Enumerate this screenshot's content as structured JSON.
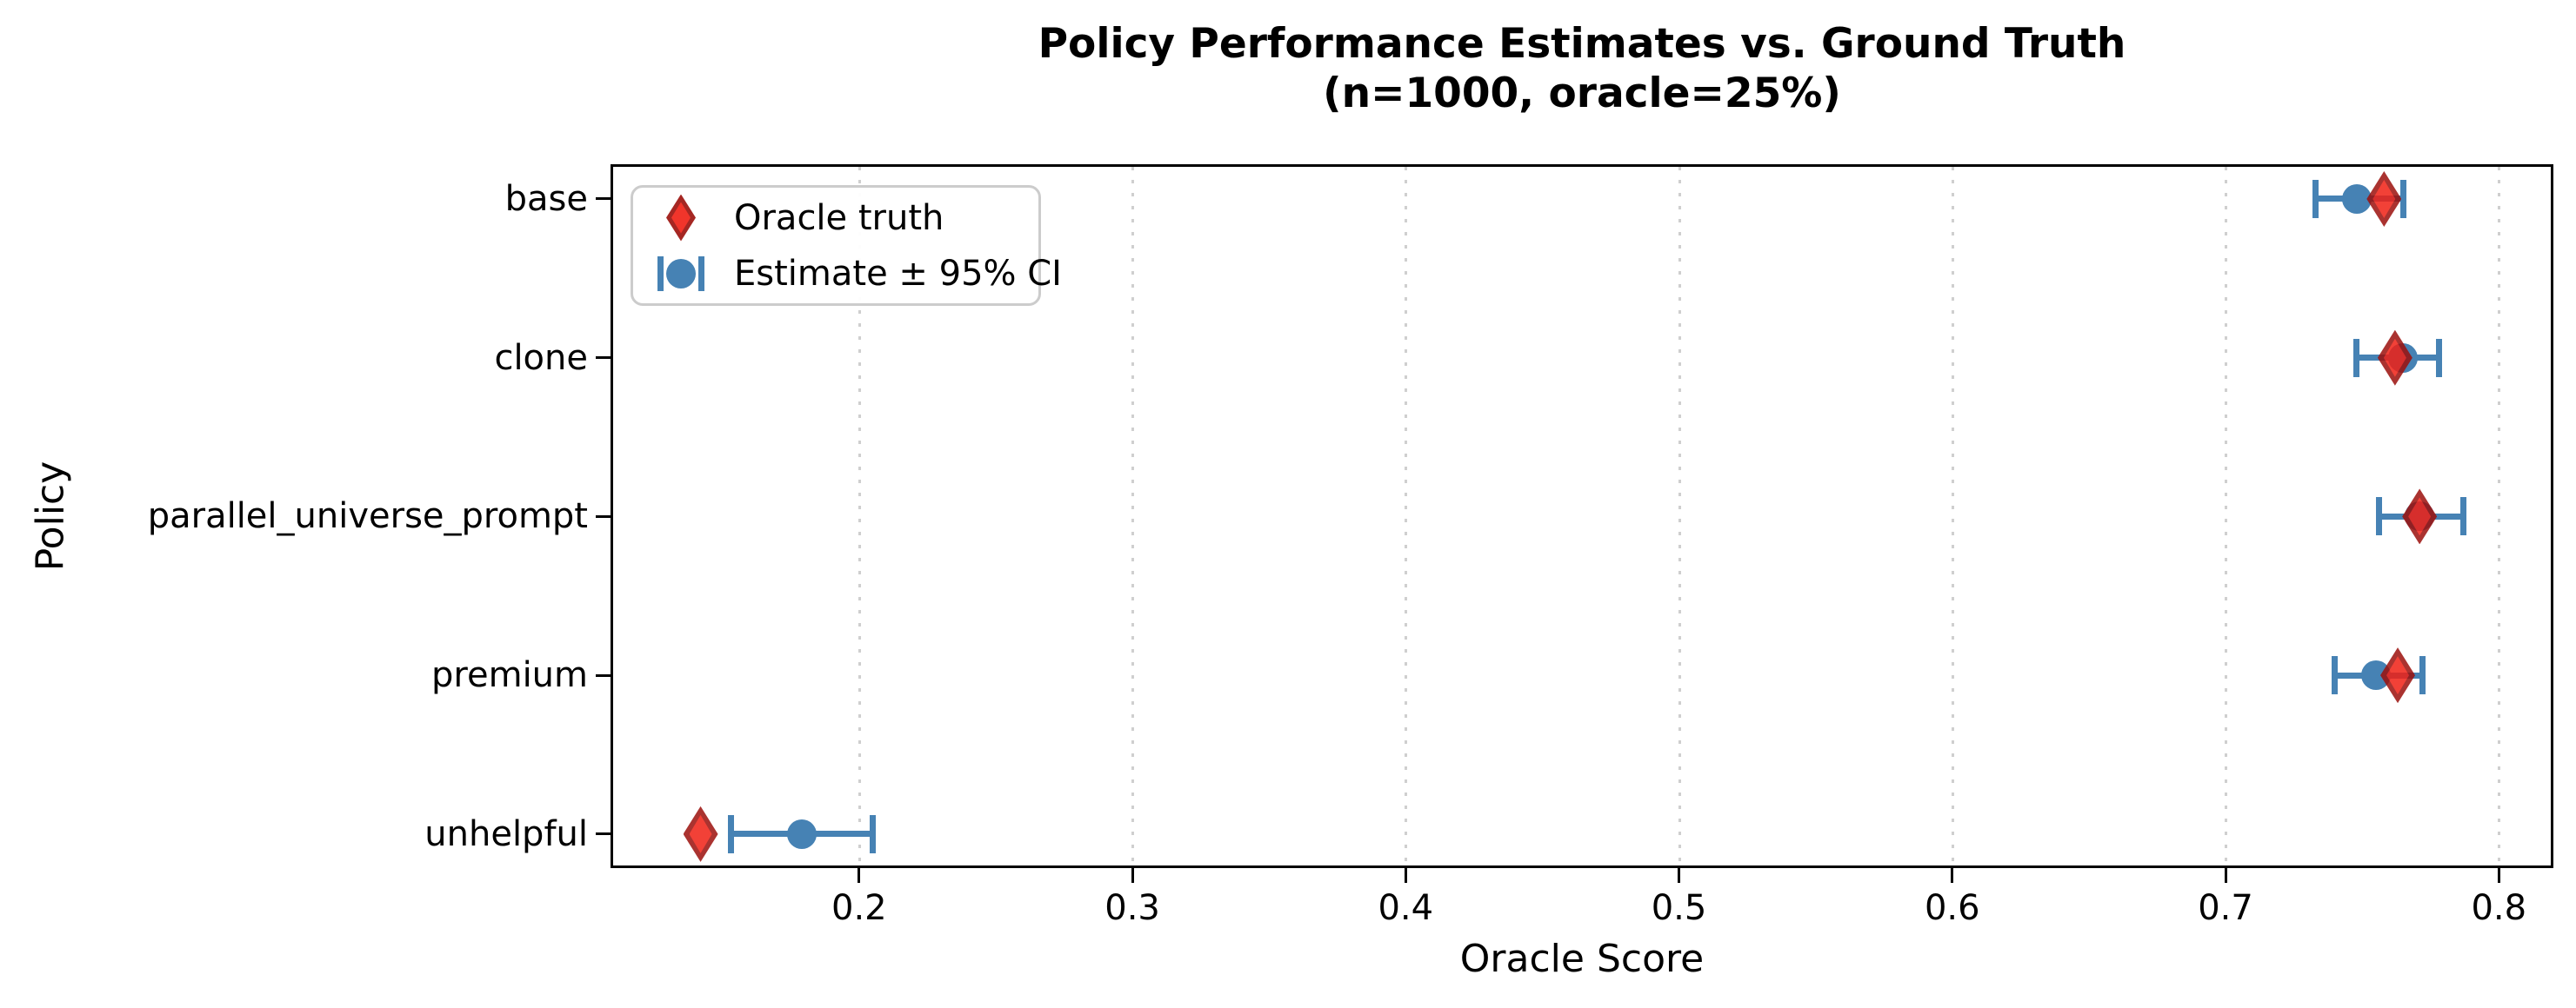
{
  "title": "Policy Performance Estimates vs. Ground Truth",
  "subtitle": "(n=1000, oracle=25%)",
  "axes": {
    "xlabel": "Oracle Score",
    "ylabel": "Policy"
  },
  "legend": {
    "oracle": "Oracle truth",
    "estimate": "Estimate ± 95% CI"
  },
  "colors": {
    "estimate_blue": "#4682B4",
    "truth_red": "#f02015",
    "truth_red_edge": "#9c100c",
    "grid_gray": "#cfcfcf",
    "spine_black": "#000000",
    "legend_border": "#cccccc"
  },
  "chart_data": {
    "type": "scatter",
    "orientation": "horizontal",
    "title": "Policy Performance Estimates vs. Ground Truth (n=1000, oracle=25%)",
    "xlabel": "Oracle Score",
    "ylabel": "Policy",
    "categories": [
      "base",
      "clone",
      "parallel_universe_prompt",
      "premium",
      "unhelpful"
    ],
    "series": [
      {
        "name": "Oracle truth",
        "marker": "diamond",
        "values": [
          0.758,
          0.762,
          0.771,
          0.763,
          0.142
        ]
      },
      {
        "name": "Estimate ± 95% CI",
        "marker": "circle-with-errorbar",
        "values": [
          0.748,
          0.765,
          0.771,
          0.755,
          0.179
        ],
        "ci_low": [
          0.733,
          0.748,
          0.756,
          0.74,
          0.153
        ],
        "ci_high": [
          0.765,
          0.778,
          0.787,
          0.772,
          0.205
        ]
      }
    ],
    "xlim": [
      0.11,
      0.819
    ],
    "x_ticks": [
      0.2,
      0.3,
      0.4,
      0.5,
      0.6,
      0.7,
      0.8
    ],
    "grid": "vertical dotted at x ticks",
    "legend_position": "upper left"
  }
}
